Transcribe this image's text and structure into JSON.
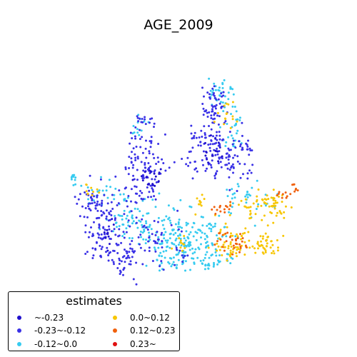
{
  "chart_data": {
    "type": "scatter",
    "title": "AGE_2009",
    "xlabel": "",
    "ylabel": "",
    "axes_visible": false,
    "legend": {
      "title": "estimates",
      "placement": "bottom-left",
      "entries": [
        {
          "label": "~-0.23",
          "color": "#1f0fcc"
        },
        {
          "label": "-0.23~-0.12",
          "color": "#3a31e6"
        },
        {
          "label": "-0.12~0.0",
          "color": "#36cbf0"
        },
        {
          "label": "0.0~0.12",
          "color": "#f7c600"
        },
        {
          "label": "0.12~0.23",
          "color": "#f0600c"
        },
        {
          "label": "0.23~",
          "color": "#e01010"
        }
      ]
    },
    "series_note": "each point is one spatial unit; points colored by estimate class"
  }
}
